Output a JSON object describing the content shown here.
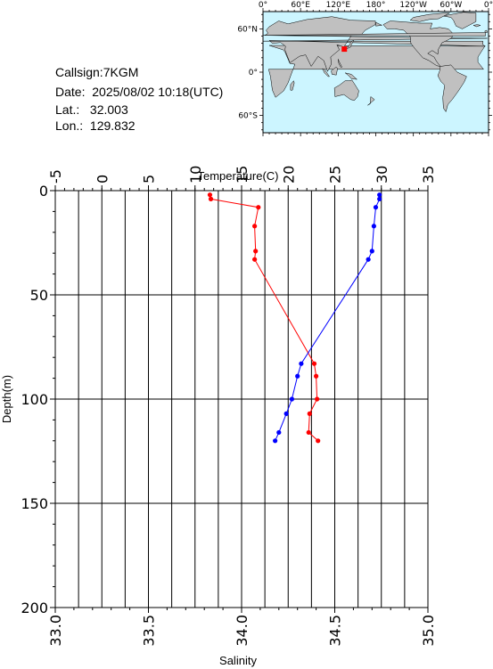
{
  "station": {
    "callsign_label": "Callsign:",
    "callsign": "7KGM",
    "date_label": "Date:",
    "date": "2025/08/02 10:18(UTC)",
    "lat_label": "Lat.:",
    "lat": "32.003",
    "lon_label": "Lon.:",
    "lon": "129.832"
  },
  "map": {
    "top_labels": [
      "0°",
      "60°E",
      "120°E",
      "180°",
      "120°W",
      "60°W",
      "0°"
    ],
    "left_labels": [
      "60°N",
      "0°",
      "60°S"
    ],
    "ocean_color": "#ccf5ff",
    "land_color": "#c0c0c0",
    "marker_color": "#ff0000",
    "marker_lon": 129.832,
    "marker_lat": 32.003
  },
  "colors": {
    "temperature": "#ff0000",
    "salinity": "#0000ff"
  },
  "chart_data": {
    "type": "line",
    "title": "",
    "top_axis_label": "Temperature(C)",
    "bottom_axis_label": "Salinity",
    "left_axis_label": "Depth(m)",
    "depth_range": [
      0,
      200
    ],
    "depth_ticks": [
      "0",
      "50",
      "100",
      "150",
      "200"
    ],
    "temperature_range": [
      -5,
      35
    ],
    "temperature_ticks": [
      "-5",
      "0",
      "5",
      "10",
      "15",
      "20",
      "25",
      "30",
      "35"
    ],
    "salinity_range": [
      33.0,
      35.0
    ],
    "salinity_ticks": [
      "33.0",
      "33.5",
      "34.0",
      "34.5",
      "35.0"
    ],
    "grid": true,
    "series": [
      {
        "name": "Temperature",
        "axis": "top",
        "color": "#ff0000",
        "depth": [
          2,
          4,
          8,
          17,
          29,
          33,
          83,
          89,
          100,
          107,
          116,
          120
        ],
        "values": [
          11.6,
          11.7,
          16.8,
          16.4,
          16.5,
          16.4,
          22.8,
          23.0,
          23.1,
          22.3,
          22.2,
          23.2
        ]
      },
      {
        "name": "Salinity",
        "axis": "bottom",
        "color": "#0000ff",
        "depth": [
          2,
          4,
          8,
          17,
          29,
          33,
          83,
          89,
          100,
          107,
          116,
          120
        ],
        "values": [
          34.74,
          34.74,
          34.72,
          34.71,
          34.7,
          34.68,
          34.32,
          34.3,
          34.27,
          34.24,
          34.2,
          34.18
        ]
      }
    ]
  }
}
